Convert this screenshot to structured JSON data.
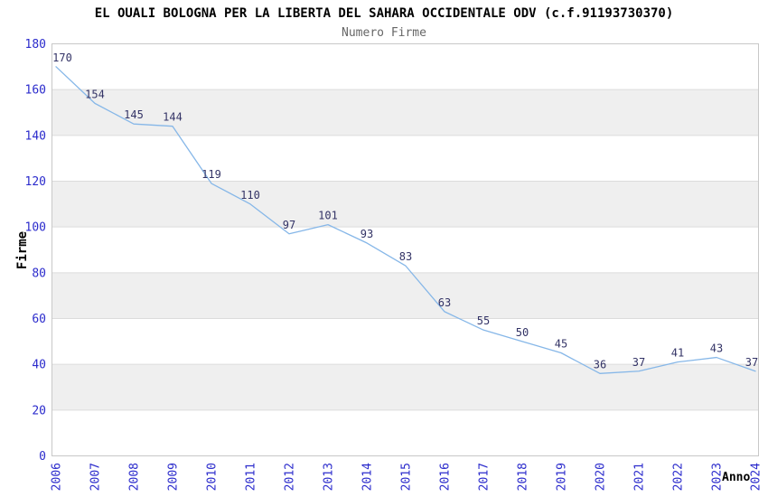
{
  "chart_data": {
    "type": "line",
    "title": "EL OUALI BOLOGNA PER LA LIBERTA DEL SAHARA OCCIDENTALE ODV (c.f.91193730370)",
    "subtitle": "Numero Firme",
    "xlabel": "Anno",
    "ylabel": "Firme",
    "categories": [
      "2006",
      "2007",
      "2008",
      "2009",
      "2010",
      "2011",
      "2012",
      "2013",
      "2014",
      "2015",
      "2016",
      "2017",
      "2018",
      "2019",
      "2020",
      "2021",
      "2022",
      "2023",
      "2024"
    ],
    "values": [
      170,
      154,
      145,
      144,
      119,
      110,
      97,
      101,
      93,
      83,
      63,
      55,
      50,
      45,
      36,
      37,
      41,
      43,
      37
    ],
    "ylim": [
      0,
      180
    ],
    "ytick_step": 20,
    "yticks": [
      0,
      20,
      40,
      60,
      80,
      100,
      120,
      140,
      160,
      180
    ],
    "grid": "horizontal gridlines with alternating gray bands",
    "legend_position": "none",
    "data_labels_visible": true,
    "x_tick_rotation_deg": -90,
    "colors": {
      "line": "#86b7e8",
      "tick_label": "#2b2bcc",
      "data_label": "#333366",
      "band": "#efefef",
      "gridline": "#dcdcdc",
      "plot_border": "#c8c8c8",
      "title": "#000000",
      "subtitle": "#666666",
      "axis_title": "#000000",
      "plot_background": "#ffffff"
    }
  }
}
